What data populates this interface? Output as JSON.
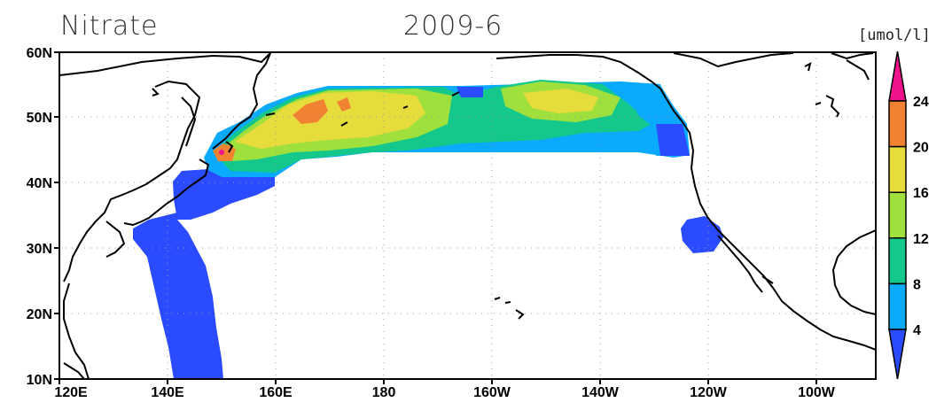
{
  "title": {
    "variable": "Nitrate",
    "date": "2009-6"
  },
  "units": "[umol/l]",
  "map": {
    "lon_range": [
      "120E",
      "90W"
    ],
    "lat_range": [
      "10N",
      "60N"
    ],
    "lon_ticks": [
      "120E",
      "140E",
      "160E",
      "180",
      "160W",
      "140W",
      "120W",
      "100W"
    ],
    "lat_ticks": [
      "60N",
      "50N",
      "40N",
      "30N",
      "20N",
      "10N"
    ],
    "grid": "dotted"
  },
  "colorbar": {
    "labels": [
      "4",
      "8",
      "12",
      "16",
      "20",
      "24"
    ],
    "colors": [
      "#2a4bff",
      "#0aaaff",
      "#14c88c",
      "#a0e03c",
      "#e6dc3c",
      "#f08232",
      "#f0148c"
    ]
  },
  "coastline_color": "#000000"
}
